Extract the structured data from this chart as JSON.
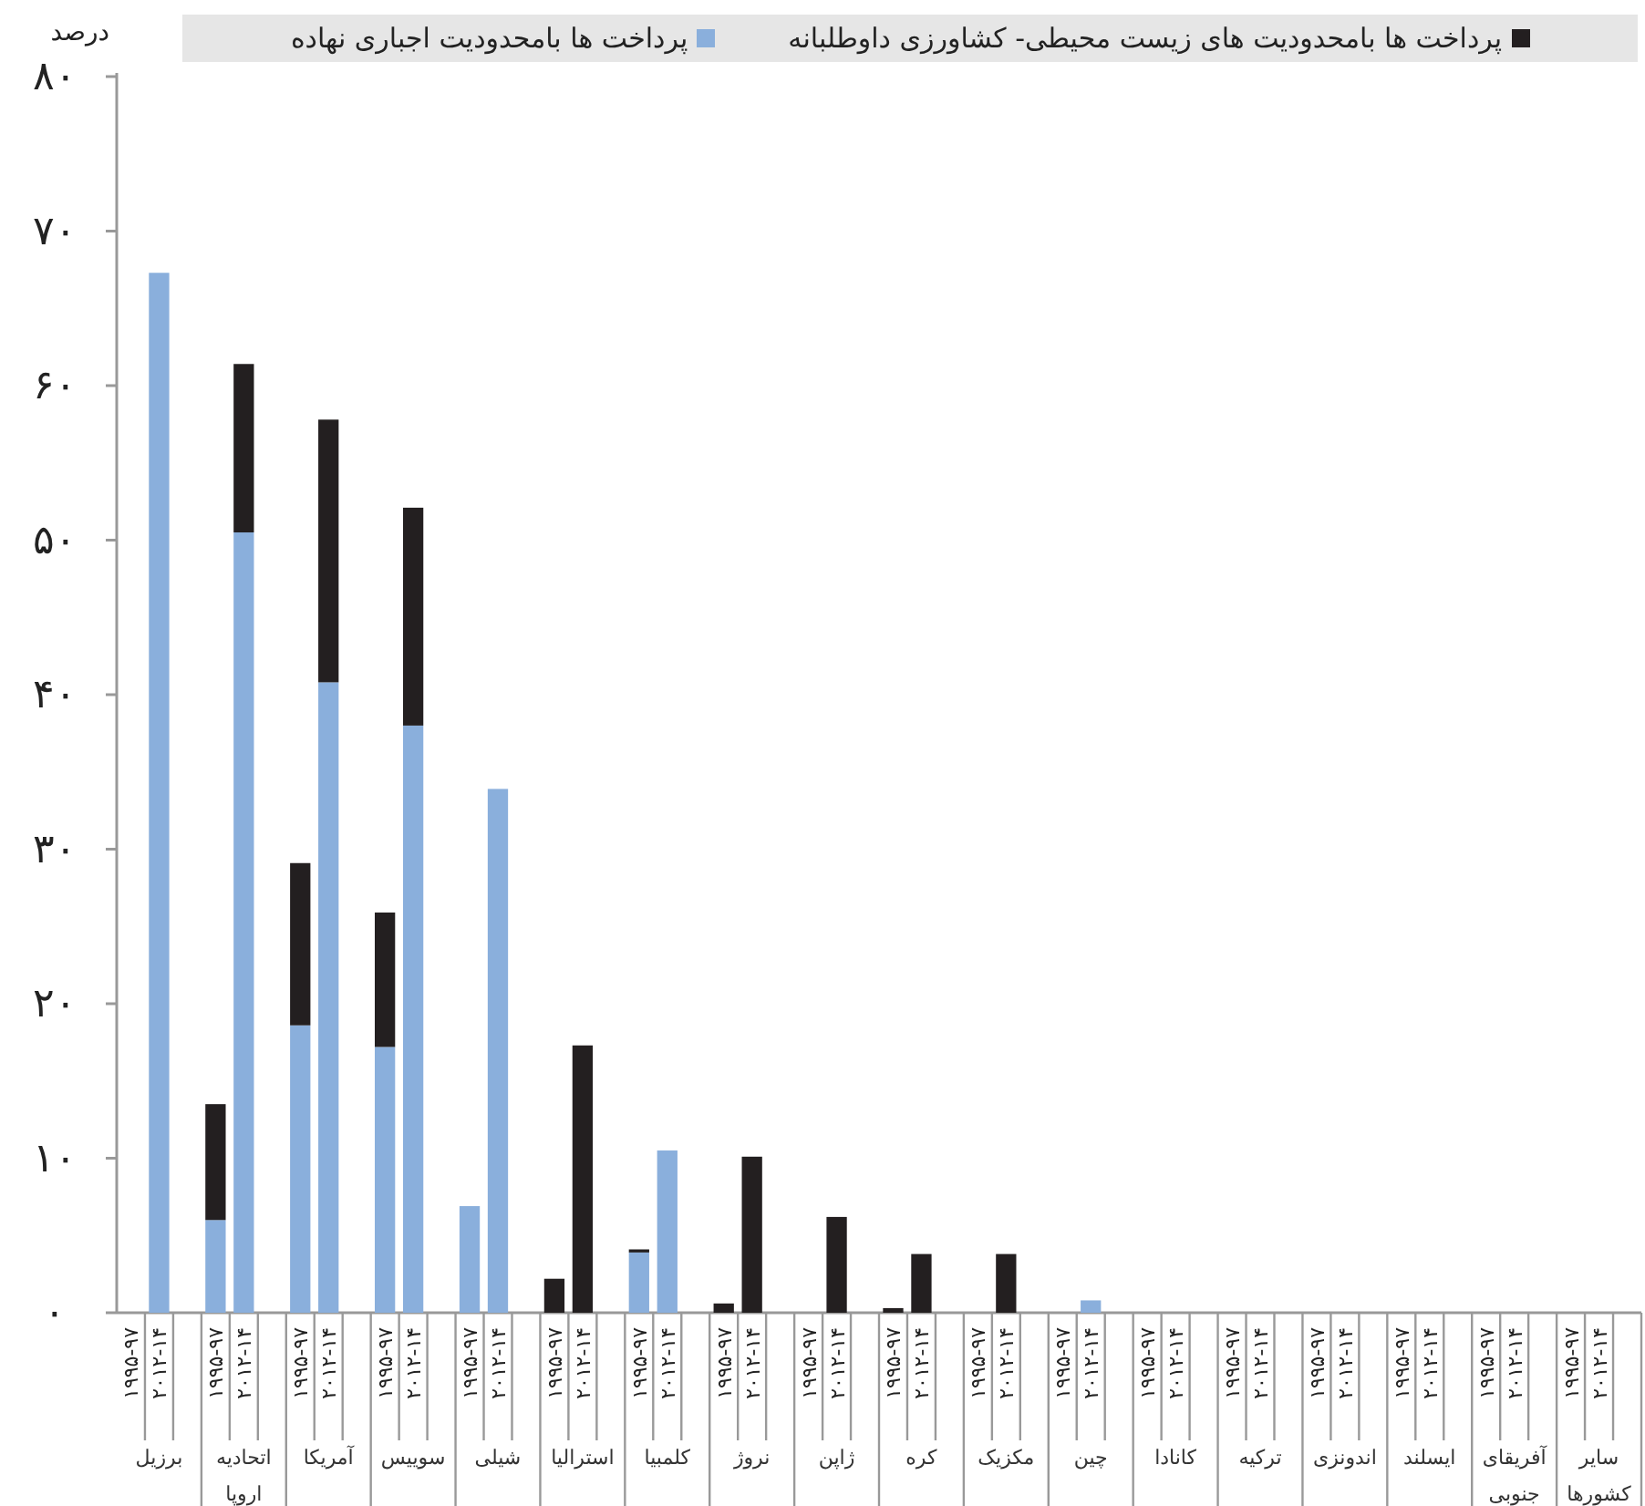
{
  "chart_data": {
    "type": "bar",
    "stacked": true,
    "ylabel": "درصد",
    "legend": "top",
    "categories": [
      "۱۹۹۵-۹۷",
      "۲۰۱۲-۱۴",
      null,
      "۱۹۹۵-۹۷",
      "۲۰۱۲-۱۴",
      null,
      "۱۹۹۵-۹۷",
      "۲۰۱۲-۱۴",
      null,
      "۱۹۹۵-۹۷",
      "۲۰۱۲-۱۴",
      null,
      "۱۹۹۵-۹۷",
      "۲۰۱۲-۱۴",
      null,
      "۱۹۹۵-۹۷",
      "۲۰۱۲-۱۴",
      null,
      "۱۹۹۵-۹۷",
      "۲۰۱۲-۱۴",
      null,
      "۱۹۹۵-۹۷",
      "۲۰۱۲-۱۴",
      null,
      "۱۹۹۵-۹۷",
      "۲۰۱۲-۱۴",
      null,
      "۱۹۹۵-۹۷",
      "۲۰۱۲-۱۴",
      null,
      "۱۹۹۵-۹۷",
      "۲۰۱۲-۱۴",
      null,
      "۱۹۹۵-۹۷",
      "۲۰۱۲-۱۴",
      null,
      "۱۹۹۵-۹۷",
      "۲۰۱۲-۱۴",
      null,
      "۱۹۹۵-۹۷",
      "۲۰۱۲-۱۴",
      null,
      "۱۹۹۵-۹۷",
      "۲۰۱۲-۱۴",
      null,
      "۱۹۹۵-۹۷",
      "۲۰۱۲-۱۴",
      null,
      "۱۹۹۵-۹۷",
      "۲۰۱۲-۱۴",
      null,
      "۱۹۹۵-۹۷",
      "۲۰۱۲-۱۴",
      null
    ],
    "series": [
      {
        "name": "پرداخت ها بامحدودیت اجباری نهاده",
        "color": "#8aafdc",
        "values": [
          0,
          67.3,
          null,
          6.0,
          50.5,
          null,
          18.6,
          40.8,
          null,
          17.2,
          38.0,
          null,
          6.9,
          33.9,
          null,
          0,
          0,
          null,
          3.9,
          10.5,
          null,
          0,
          0,
          null,
          0,
          0,
          null,
          0,
          0,
          null,
          0,
          0,
          null,
          0,
          0.8,
          null,
          0,
          0,
          null,
          0,
          0,
          null,
          0,
          0,
          null,
          0,
          0,
          null,
          0,
          0,
          null,
          0,
          0,
          null
        ]
      },
      {
        "name": "پرداخت ها بامحدودیت های زیست محیطی- کشاورزی داوطلبانه",
        "color": "#231f20",
        "values": [
          0,
          0,
          null,
          7.5,
          10.9,
          null,
          10.5,
          17.0,
          null,
          8.7,
          14.1,
          null,
          0,
          0,
          null,
          2.2,
          17.3,
          null,
          0.2,
          0,
          null,
          0.6,
          10.1,
          null,
          0,
          6.2,
          null,
          0.3,
          3.8,
          null,
          0,
          3.8,
          null,
          0,
          0,
          null,
          0,
          0,
          null,
          0,
          0,
          null,
          0,
          0,
          null,
          0,
          0,
          null,
          0,
          0,
          null,
          0,
          0,
          null
        ]
      }
    ],
    "ylim": [
      0,
      80
    ],
    "yticks": [
      {
        "value": 0,
        "label": "۰"
      },
      {
        "value": 10,
        "label": "۱۰"
      },
      {
        "value": 20,
        "label": "۲۰"
      },
      {
        "value": 30,
        "label": "۳۰"
      },
      {
        "value": 40,
        "label": "۴۰"
      },
      {
        "value": 50,
        "label": "۵۰"
      },
      {
        "value": 60,
        "label": "۶۰"
      },
      {
        "value": 70,
        "label": "۷۰"
      },
      {
        "value": 80,
        "label": "۸۰"
      }
    ],
    "annotations": [
      "برزیل",
      "اتحادیه اروپا",
      "آمریکا",
      "سوییس",
      "شیلی",
      "استرالیا",
      "کلمبیا",
      "نروژ",
      "ژاپن",
      "کره",
      "مکزیک",
      "چین",
      "کانادا",
      "ترکیه",
      "اندونزی",
      "ایسلند",
      "آفریقای جنوبی",
      "سایر کشورها"
    ]
  }
}
